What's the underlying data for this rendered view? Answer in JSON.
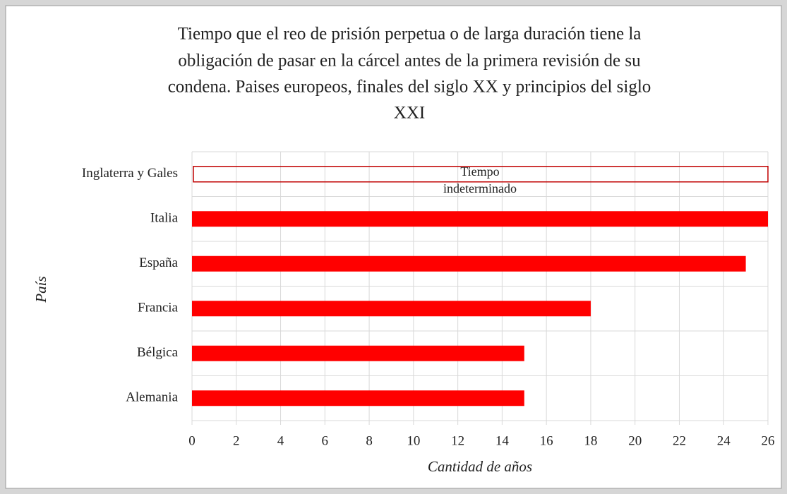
{
  "chart_data": {
    "type": "bar",
    "orientation": "horizontal",
    "title": [
      "Tiempo  que el reo de prisión  perpetua o de larga duración  tiene la",
      "obligación  de pasar en la cárcel antes de la primera revisión  de su",
      "condena. Paises europeos, finales  del siglo  XX y principios  del siglo",
      "XXI"
    ],
    "x_label": "Cantidad de años",
    "y_label": "País",
    "categories": [
      "Inglaterra y Gales",
      "Italia",
      "España",
      "Francia",
      "Bélgica",
      "Alemania"
    ],
    "values": [
      null,
      26,
      25,
      18,
      15,
      15
    ],
    "annotation": [
      "Tiempo",
      "indeterminado"
    ],
    "color": "#ff0000",
    "annotation_color": "#c00000",
    "xlim": [
      0,
      26
    ],
    "xticks": [
      0,
      2,
      4,
      6,
      8,
      10,
      12,
      14,
      16,
      18,
      20,
      22,
      24,
      26
    ],
    "grid": true
  }
}
